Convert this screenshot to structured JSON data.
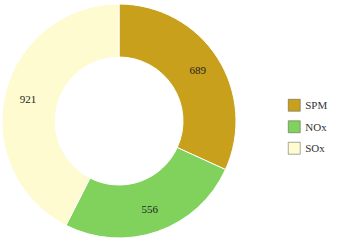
{
  "chart_data": {
    "type": "pie",
    "categories": [
      "SPM",
      "NOx",
      "SOx"
    ],
    "values": [
      689,
      556,
      921
    ],
    "colors": [
      "#c9a01c",
      "#80d25c",
      "#fdfbcf"
    ],
    "data_labels": true,
    "legend": "right"
  }
}
